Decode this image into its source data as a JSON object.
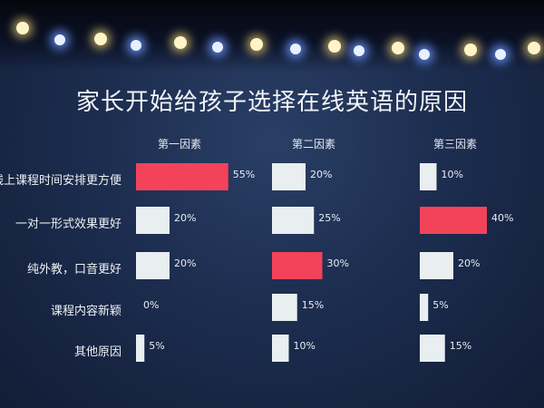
{
  "title": "家长开始给孩子选择在线英语的原因",
  "chart_data": {
    "type": "bar",
    "orientation": "horizontal",
    "title": "家长开始给孩子选择在线英语的原因",
    "categories": [
      "线上课程时间安排更方便",
      "一对一形式效果更好",
      "纯外教，口音更好",
      "课程内容新颖",
      "其他原因"
    ],
    "category_labels_visible": [
      "线上课程时间安排更方便",
      "一对一形式效果更好",
      "纯外教，口音更好",
      "课程内容新颖",
      "其他原因"
    ],
    "groups": [
      {
        "name": "第一因素",
        "values": [
          55,
          20,
          20,
          0,
          5
        ],
        "labels": [
          "55%",
          "20%",
          "20%",
          "0%",
          "5%"
        ]
      },
      {
        "name": "第二因素",
        "values": [
          20,
          25,
          30,
          15,
          10
        ],
        "labels": [
          "20%",
          "25%",
          "30%",
          "15%",
          "10%"
        ]
      },
      {
        "name": "第三因素",
        "values": [
          10,
          40,
          20,
          5,
          15
        ],
        "labels": [
          "10%",
          "40%",
          "20%",
          "5%",
          "15%"
        ]
      }
    ],
    "highlight_color": "#f2435b",
    "bar_color": "#e9eef0"
  }
}
